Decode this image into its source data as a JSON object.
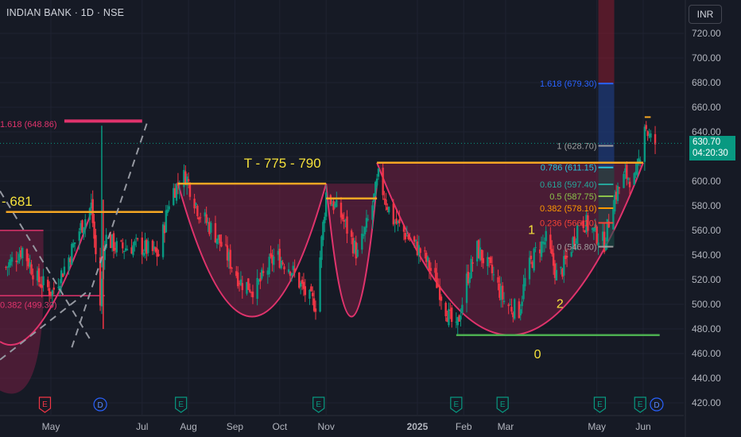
{
  "header": {
    "title": "INDIAN BANK · 1D · NSE",
    "currency": "INR"
  },
  "last_price": {
    "value": "630.70",
    "countdown": "04:20:30",
    "color": "#089981"
  },
  "annotations": {
    "target": "T - 775 - 790",
    "left_target": "- 681",
    "wave_1": "1",
    "wave_2": "2",
    "wave_0": "0",
    "left_fib_top": "1.618 (648.86)",
    "left_fib_bottom": "0.382 (499.30)"
  },
  "colors": {
    "background": "#161a25",
    "up": "#089981",
    "down": "#f23645",
    "orange": "#f5a623",
    "cup_fill": "#8a1f4a",
    "cup_line": "#e0336c",
    "yellow_label": "#f5e13b",
    "green_line": "#4caf50"
  },
  "fib_levels": [
    {
      "ratio": "1.618",
      "price": 679.3,
      "label": "1.618 (679.30)",
      "color": "#2962ff"
    },
    {
      "ratio": "1",
      "price": 628.7,
      "label": "1 (628.70)",
      "color": "#9e9e9e"
    },
    {
      "ratio": "0.786",
      "price": 611.15,
      "label": "0.786 (611.15)",
      "color": "#26c6da"
    },
    {
      "ratio": "0.618",
      "price": 597.4,
      "label": "0.618 (597.40)",
      "color": "#26a69a"
    },
    {
      "ratio": "0.5",
      "price": 587.75,
      "label": "0.5 (587.75)",
      "color": "#8bc34a"
    },
    {
      "ratio": "0.382",
      "price": 578.1,
      "label": "0.382 (578.10)",
      "color": "#ff9800"
    },
    {
      "ratio": "0.236",
      "price": 566.1,
      "label": "0.236 (566.10)",
      "color": "#f44336"
    },
    {
      "ratio": "0",
      "price": 546.8,
      "label": "0 (546.80)",
      "color": "#9e9e9e"
    }
  ],
  "event_markers": [
    {
      "type": "E",
      "date": "2024-04-27"
    },
    {
      "type": "D",
      "date": "2024-06-03"
    },
    {
      "type": "E",
      "date": "2024-07-27"
    },
    {
      "type": "E",
      "date": "2024-10-27"
    },
    {
      "type": "E",
      "date": "2025-01-27"
    },
    {
      "type": "E",
      "date": "2025-02-27"
    },
    {
      "type": "E",
      "date": "2025-05-03"
    },
    {
      "type": "E",
      "date": "2025-05-30"
    },
    {
      "type": "D",
      "date": "2025-06-10"
    }
  ],
  "chart_data": {
    "type": "candlestick",
    "symbol": "INDIAN BANK",
    "interval": "1D",
    "exchange": "NSE",
    "currency": "INR",
    "ylim": [
      410,
      730
    ],
    "y_ticks": [
      "420.00",
      "440.00",
      "460.00",
      "480.00",
      "500.00",
      "520.00",
      "540.00",
      "560.00",
      "580.00",
      "600.00",
      "620.00",
      "640.00",
      "660.00",
      "680.00",
      "700.00",
      "720.00"
    ],
    "x_ticks": [
      "May",
      "Jul",
      "Aug",
      "Sep",
      "Oct",
      "Nov",
      "2025",
      "Feb",
      "Mar",
      "May",
      "Jun"
    ],
    "x_tick_dates": [
      "2024-05-01",
      "2024-07-01",
      "2024-08-01",
      "2024-09-01",
      "2024-10-01",
      "2024-11-01",
      "2025-01-01",
      "2025-02-01",
      "2025-03-01",
      "2025-05-01",
      "2025-06-01"
    ],
    "price_anchors": [
      [
        "2024-04-01",
        530
      ],
      [
        "2024-04-12",
        545
      ],
      [
        "2024-04-22",
        520
      ],
      [
        "2024-05-02",
        510
      ],
      [
        "2024-05-12",
        535
      ],
      [
        "2024-05-20",
        560
      ],
      [
        "2024-05-28",
        580
      ],
      [
        "2024-06-03",
        500
      ],
      [
        "2024-06-06",
        555
      ],
      [
        "2024-06-15",
        545
      ],
      [
        "2024-06-28",
        548
      ],
      [
        "2024-07-12",
        540
      ],
      [
        "2024-07-20",
        590
      ],
      [
        "2024-07-30",
        605
      ],
      [
        "2024-08-08",
        575
      ],
      [
        "2024-08-20",
        555
      ],
      [
        "2024-09-05",
        518
      ],
      [
        "2024-09-15",
        512
      ],
      [
        "2024-09-28",
        540
      ],
      [
        "2024-10-08",
        530
      ],
      [
        "2024-10-20",
        505
      ],
      [
        "2024-10-25",
        500
      ],
      [
        "2024-11-01",
        590
      ],
      [
        "2024-11-12",
        570
      ],
      [
        "2024-11-22",
        540
      ],
      [
        "2024-12-01",
        575
      ],
      [
        "2024-12-06",
        603
      ],
      [
        "2024-12-15",
        570
      ],
      [
        "2024-12-22",
        560
      ],
      [
        "2025-01-05",
        540
      ],
      [
        "2025-01-15",
        515
      ],
      [
        "2025-01-22",
        490
      ],
      [
        "2025-01-27",
        478
      ],
      [
        "2025-02-03",
        520
      ],
      [
        "2025-02-10",
        545
      ],
      [
        "2025-02-20",
        525
      ],
      [
        "2025-03-01",
        500
      ],
      [
        "2025-03-10",
        495
      ],
      [
        "2025-03-15",
        525
      ],
      [
        "2025-03-22",
        545
      ],
      [
        "2025-03-28",
        552
      ],
      [
        "2025-04-05",
        520
      ],
      [
        "2025-04-12",
        540
      ],
      [
        "2025-04-20",
        570
      ],
      [
        "2025-04-28",
        560
      ],
      [
        "2025-05-06",
        550
      ],
      [
        "2025-05-12",
        585
      ],
      [
        "2025-05-20",
        605
      ],
      [
        "2025-05-27",
        600
      ],
      [
        "2025-06-02",
        648
      ],
      [
        "2025-06-05",
        635
      ],
      [
        "2025-06-09",
        630.7
      ]
    ],
    "last_close": 630.7,
    "horizontal_levels": [
      {
        "price": 575,
        "from": "2024-04-01",
        "to": "2024-07-15",
        "color": "orange"
      },
      {
        "price": 598,
        "from": "2024-07-25",
        "to": "2024-11-01",
        "color": "orange"
      },
      {
        "price": 586,
        "from": "2024-11-01",
        "to": "2024-12-05",
        "color": "orange"
      },
      {
        "price": 615,
        "from": "2024-12-05",
        "to": "2025-06-01",
        "color": "orange"
      },
      {
        "price": 475,
        "from": "2025-01-27",
        "to": "2025-06-12",
        "color": "green"
      }
    ],
    "cups": [
      {
        "from": "2024-07-25",
        "to": "2024-11-01",
        "top": 598,
        "bottom": 490
      },
      {
        "from": "2024-11-01",
        "to": "2024-12-05",
        "top": 598,
        "bottom": 490
      },
      {
        "from": "2024-12-05",
        "to": "2025-06-01",
        "top": 615,
        "bottom": 475
      }
    ],
    "target_zone": [
      611,
      730
    ]
  }
}
